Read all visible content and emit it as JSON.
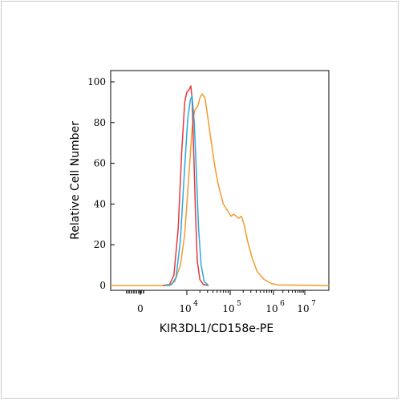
{
  "chart_data": {
    "type": "line",
    "title": "",
    "xlabel": "KIR3DL1/CD158e-PE",
    "ylabel": "Relative Cell Number",
    "x_scale": "log",
    "x_ticks": [
      {
        "value": "0",
        "base": "",
        "exp": ""
      },
      {
        "value": "10^4",
        "base": "10",
        "exp": "4"
      },
      {
        "value": "10^5",
        "base": "10",
        "exp": "5"
      },
      {
        "value": "10^6",
        "base": "10",
        "exp": "6"
      },
      {
        "value": "10^7",
        "base": "10",
        "exp": "7"
      }
    ],
    "y_ticks": [
      "0",
      "20",
      "40",
      "60",
      "80",
      "100"
    ],
    "ylim": [
      0,
      100
    ],
    "grid": false,
    "legend": "none",
    "series": [
      {
        "color": "#e8383d",
        "points": [
          [
            3.45,
            0
          ],
          [
            3.6,
            0.5
          ],
          [
            3.7,
            5
          ],
          [
            3.8,
            28
          ],
          [
            3.88,
            65
          ],
          [
            3.95,
            90
          ],
          [
            4.0,
            95
          ],
          [
            4.05,
            96
          ],
          [
            4.09,
            98
          ],
          [
            4.12,
            92
          ],
          [
            4.16,
            65
          ],
          [
            4.2,
            35
          ],
          [
            4.24,
            12
          ],
          [
            4.3,
            3
          ],
          [
            4.38,
            0.5
          ],
          [
            4.5,
            0
          ]
        ]
      },
      {
        "color": "#29a9df",
        "points": [
          [
            3.5,
            0
          ],
          [
            3.65,
            0.5
          ],
          [
            3.75,
            4
          ],
          [
            3.85,
            22
          ],
          [
            3.94,
            55
          ],
          [
            4.02,
            82
          ],
          [
            4.08,
            91
          ],
          [
            4.12,
            93
          ],
          [
            4.17,
            80
          ],
          [
            4.22,
            55
          ],
          [
            4.27,
            28
          ],
          [
            4.33,
            10
          ],
          [
            4.4,
            2
          ],
          [
            4.5,
            0
          ]
        ]
      },
      {
        "color": "#f39a2d",
        "points": [
          [
            1.0,
            0
          ],
          [
            3.6,
            0
          ],
          [
            3.72,
            2
          ],
          [
            3.85,
            10
          ],
          [
            3.95,
            25
          ],
          [
            4.05,
            55
          ],
          [
            4.12,
            77
          ],
          [
            4.18,
            86
          ],
          [
            4.25,
            88
          ],
          [
            4.3,
            92
          ],
          [
            4.35,
            94
          ],
          [
            4.42,
            92
          ],
          [
            4.5,
            80
          ],
          [
            4.58,
            68
          ],
          [
            4.65,
            58
          ],
          [
            4.72,
            50
          ],
          [
            4.78,
            45
          ],
          [
            4.84,
            40
          ],
          [
            4.9,
            38
          ],
          [
            4.96,
            36
          ],
          [
            5.02,
            34
          ],
          [
            5.08,
            35
          ],
          [
            5.14,
            34
          ],
          [
            5.2,
            33
          ],
          [
            5.26,
            34
          ],
          [
            5.32,
            30
          ],
          [
            5.4,
            22
          ],
          [
            5.5,
            14
          ],
          [
            5.62,
            7
          ],
          [
            5.78,
            3
          ],
          [
            5.95,
            1
          ],
          [
            6.1,
            0.3
          ],
          [
            7.55,
            0
          ]
        ]
      }
    ]
  }
}
